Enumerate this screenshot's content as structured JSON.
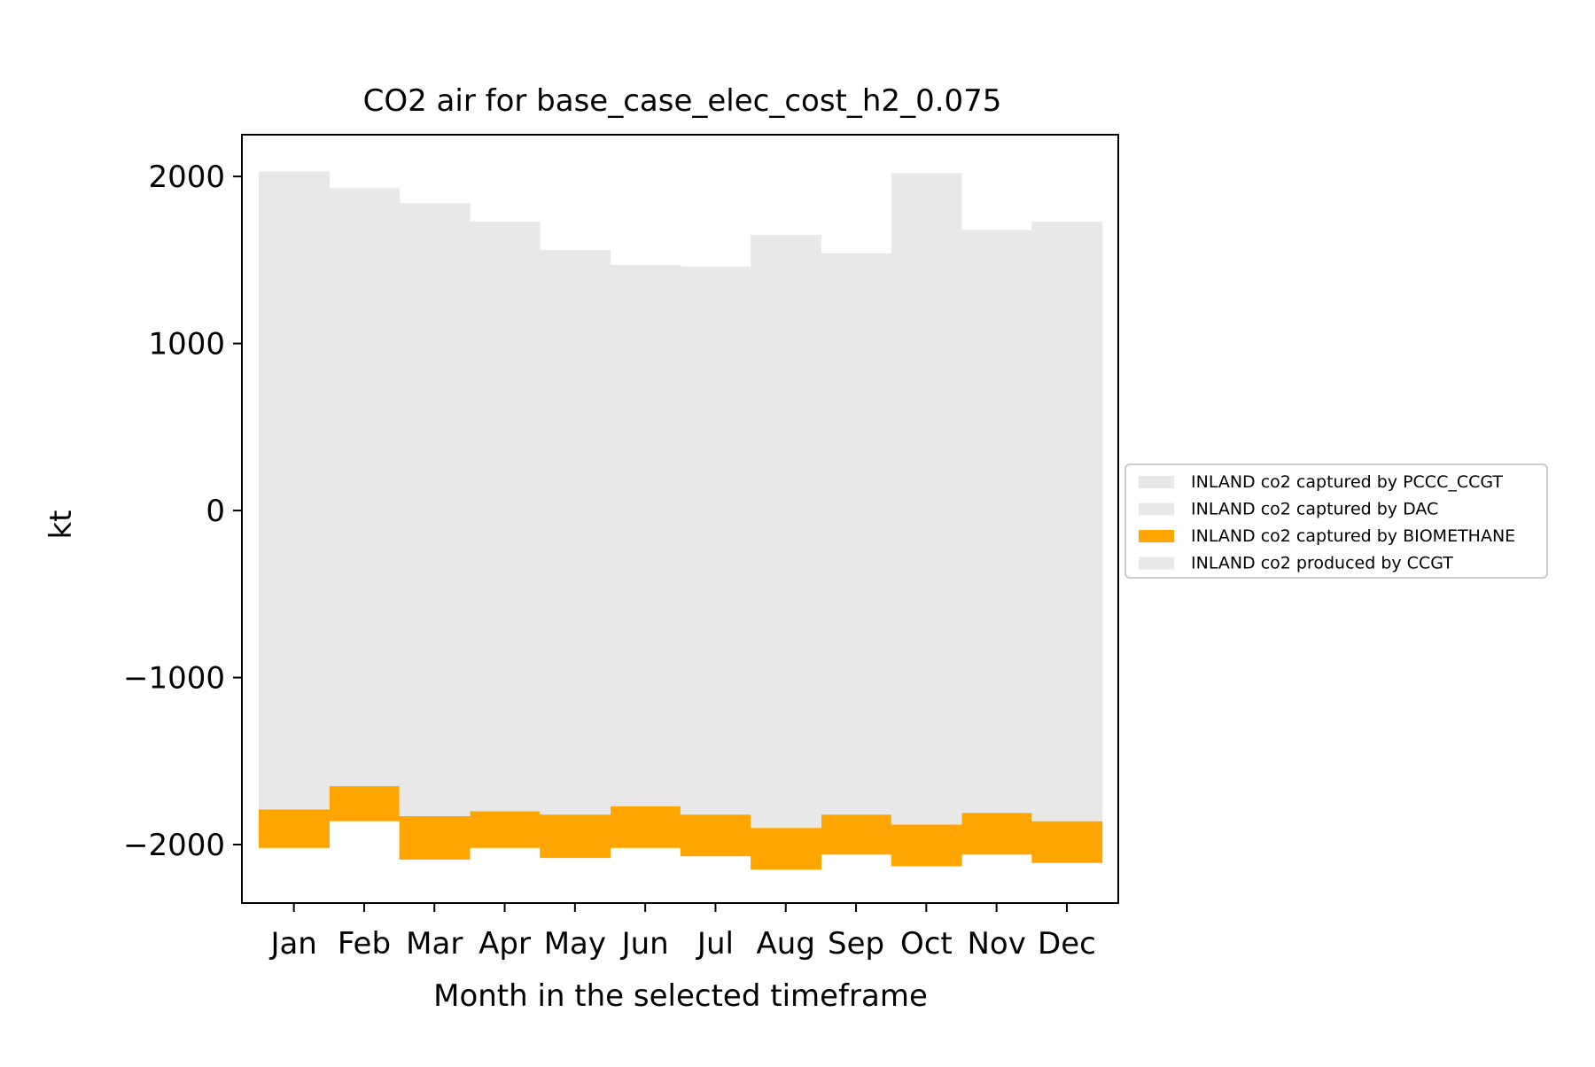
{
  "chart_data": {
    "type": "bar",
    "title": "CO2 air for base_case_elec_cost_h2_0.075",
    "xlabel": "Month in the selected timeframe",
    "ylabel": "kt",
    "ylim": [
      -2350,
      2250
    ],
    "yticks": [
      2000,
      1000,
      0,
      -1000,
      -2000
    ],
    "ytick_labels": [
      "2000",
      "1000",
      "0",
      "−1000",
      "−2000"
    ],
    "categories": [
      "Jan",
      "Feb",
      "Mar",
      "Apr",
      "May",
      "Jun",
      "Jul",
      "Aug",
      "Sep",
      "Oct",
      "Nov",
      "Dec"
    ],
    "grid": false,
    "legend_position": "outside-right",
    "series": [
      {
        "name": "INLAND co2 captured by PCCC_CCGT",
        "color": "#e8e8e8",
        "values": [
          0,
          0,
          0,
          0,
          0,
          0,
          0,
          0,
          0,
          0,
          0,
          0
        ]
      },
      {
        "name": "INLAND co2 captured by DAC",
        "color": "#e8e8e8",
        "values": [
          0,
          0,
          0,
          0,
          0,
          0,
          0,
          0,
          0,
          0,
          0,
          0
        ]
      },
      {
        "name": "INLAND co2 captured by BIOMETHANE",
        "color": "#ffa500",
        "low": [
          -2020,
          -1860,
          -2090,
          -2020,
          -2080,
          -2020,
          -2070,
          -2150,
          -2060,
          -2130,
          -2060,
          -2110
        ],
        "high": [
          -1790,
          -1650,
          -1830,
          -1800,
          -1820,
          -1770,
          -1820,
          -1900,
          -1820,
          -1880,
          -1810,
          -1860
        ]
      },
      {
        "name": "INLAND co2 produced by CCGT",
        "color": "#e8e8e8",
        "low": [
          -1790,
          -1650,
          -1830,
          -1800,
          -1820,
          -1770,
          -1820,
          -1900,
          -1820,
          -1880,
          -1810,
          -1860
        ],
        "high": [
          2030,
          1930,
          1840,
          1730,
          1560,
          1470,
          1460,
          1650,
          1540,
          2020,
          1680,
          1730
        ]
      }
    ]
  }
}
